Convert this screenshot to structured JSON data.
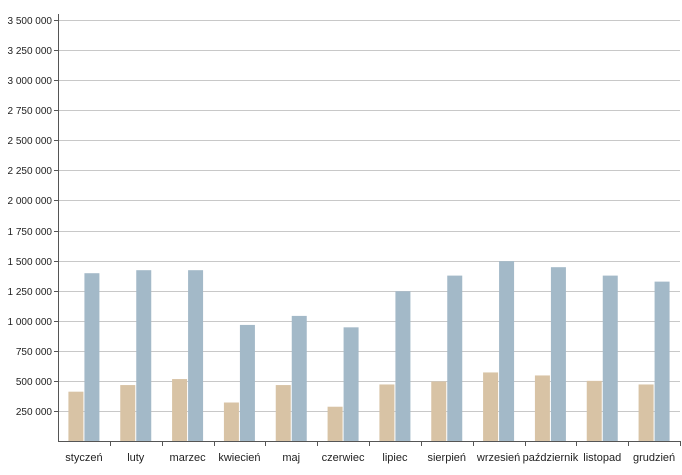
{
  "chart_data": {
    "type": "bar",
    "title": "",
    "xlabel": "",
    "ylabel": "",
    "ylim": [
      0,
      3500000
    ],
    "yticks": [
      250000,
      500000,
      750000,
      1000000,
      1250000,
      1500000,
      1750000,
      2000000,
      2250000,
      2500000,
      2750000,
      3000000,
      3250000,
      3500000
    ],
    "ytick_labels": [
      "250 000",
      "500 000",
      "750 000",
      "1 000 000",
      "1 250 000",
      "1 500 000",
      "1 750 000",
      "2 000 000",
      "2 250 000",
      "2 500 000",
      "2 750 000",
      "3 000 000",
      "3 250 000",
      "3 500 000"
    ],
    "categories": [
      "styczeń",
      "luty",
      "marzec",
      "kwiecień",
      "maj",
      "czerwiec",
      "lipiec",
      "sierpień",
      "wrzesień",
      "październik",
      "listopad",
      "grudzień"
    ],
    "series": [
      {
        "color": "#d8c3a5",
        "values": [
          410000,
          465000,
          515000,
          320000,
          465000,
          285000,
          470000,
          495000,
          570000,
          545000,
          500000,
          470000
        ]
      },
      {
        "color": "#a3b9c8",
        "values": [
          1395000,
          1420000,
          1420000,
          965000,
          1040000,
          945000,
          1245000,
          1375000,
          1495000,
          1445000,
          1375000,
          1325000
        ]
      }
    ],
    "grid": true,
    "legend": false,
    "colors": {
      "grid": "#c8c8c8",
      "axis": "#555555"
    }
  }
}
